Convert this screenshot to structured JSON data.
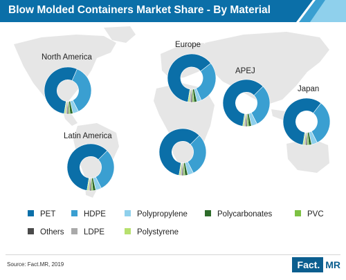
{
  "title": "Blow Molded Containers Market Share - By Material",
  "source": "Source: Fact.MR, 2019",
  "brand": {
    "part1": "Fact.",
    "part2": "MR"
  },
  "colors": {
    "PET": "#0b6fa8",
    "HDPE": "#3a9fd1",
    "Polypropylene": "#8fd0ec",
    "Polycarbonates": "#2d6b2a",
    "PVC": "#7dc143",
    "Others": "#4a4a4a",
    "LDPE": "#a9a9a9",
    "Polystyrene": "#b7e06e"
  },
  "legend": [
    "PET",
    "HDPE",
    "Polypropylene",
    "Polycarbonates",
    "PVC",
    "Others",
    "LDPE",
    "Polystyrene"
  ],
  "chart_data": [
    {
      "type": "pie",
      "label": "North America",
      "categories": [
        "PET",
        "HDPE",
        "Polypropylene",
        "Polycarbonates",
        "PVC",
        "Others",
        "LDPE",
        "Polystyrene"
      ],
      "values": [
        54,
        36,
        4,
        2,
        1,
        1,
        1,
        1
      ]
    },
    {
      "type": "pie",
      "label": "Europe",
      "categories": [
        "PET",
        "HDPE",
        "Polypropylene",
        "Polycarbonates",
        "PVC",
        "Others",
        "LDPE",
        "Polystyrene"
      ],
      "values": [
        62,
        29,
        3,
        2,
        1,
        1,
        1,
        1
      ]
    },
    {
      "type": "pie",
      "label": "APEJ",
      "categories": [
        "PET",
        "HDPE",
        "Polypropylene",
        "Polycarbonates",
        "PVC",
        "Others",
        "LDPE",
        "Polystyrene"
      ],
      "values": [
        60,
        30,
        4,
        2,
        1,
        1,
        1,
        1
      ]
    },
    {
      "type": "pie",
      "label": "Japan",
      "categories": [
        "PET",
        "HDPE",
        "Polypropylene",
        "Polycarbonates",
        "PVC",
        "Others",
        "LDPE",
        "Polystyrene"
      ],
      "values": [
        58,
        32,
        4,
        2,
        1,
        1,
        1,
        1
      ]
    },
    {
      "type": "pie",
      "label": "Latin America",
      "categories": [
        "PET",
        "HDPE",
        "Polypropylene",
        "Polycarbonates",
        "PVC",
        "Others",
        "LDPE",
        "Polystyrene"
      ],
      "values": [
        60,
        30,
        4,
        2,
        1,
        1,
        1,
        1
      ]
    },
    {
      "type": "pie",
      "label": "",
      "categories": [
        "PET",
        "HDPE",
        "Polypropylene",
        "Polycarbonates",
        "PVC",
        "Others",
        "LDPE",
        "Polystyrene"
      ],
      "values": [
        60,
        30,
        4,
        2,
        1,
        1,
        1,
        1
      ]
    }
  ]
}
